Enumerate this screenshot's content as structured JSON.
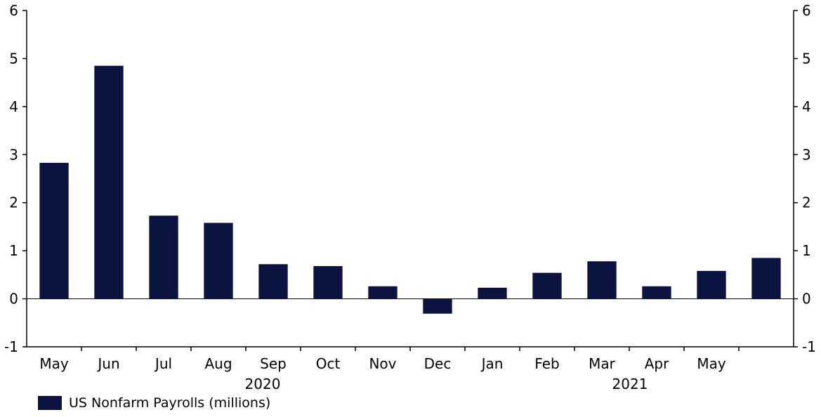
{
  "chart_data": {
    "type": "bar",
    "categories": [
      "May",
      "Jun",
      "Jul",
      "Aug",
      "Sep",
      "Oct",
      "Nov",
      "Dec",
      "Jan",
      "Feb",
      "Mar",
      "Apr",
      "May",
      ""
    ],
    "series": [
      {
        "name": "US Nonfarm Payrolls (millions)",
        "values": [
          2.83,
          4.85,
          1.73,
          1.58,
          0.72,
          0.68,
          0.26,
          -0.31,
          0.23,
          0.54,
          0.78,
          0.26,
          0.58,
          0.85
        ],
        "color": "#0b1440"
      }
    ],
    "year_labels": [
      "2020",
      "2021"
    ],
    "ylim": [
      -1,
      6
    ],
    "yticks": [
      "-1",
      "0",
      "1",
      "2",
      "3",
      "4",
      "5",
      "6"
    ],
    "y_axis_both_sides": true,
    "legend_position": "bottom-left",
    "grid": false
  }
}
